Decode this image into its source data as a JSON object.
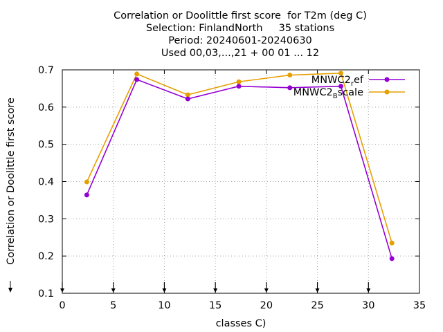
{
  "chart_data": {
    "type": "line",
    "title_lines": [
      "Correlation or Doolittle first score  for T2m (deg C)",
      "Selection: FinlandNorth     35 stations",
      "Period: 20240601-20240630",
      "Used 00,03,...,21 + 00 01 ... 12"
    ],
    "xlabel": "classes C)",
    "ylabel": "Correlation or Doolittle first score",
    "xlim": [
      0,
      35
    ],
    "ylim": [
      0.1,
      0.7
    ],
    "xticks": [
      "0",
      "5",
      "10",
      "15",
      "20",
      "25",
      "30",
      "35"
    ],
    "yticks": [
      "0.1",
      "0.2",
      "0.3",
      "0.4",
      "0.5",
      "0.6",
      "0.7"
    ],
    "grid": true,
    "legend_position": "top-right",
    "x": [
      2.4,
      7.3,
      12.3,
      17.3,
      22.3,
      27.3,
      32.3
    ],
    "series": [
      {
        "name": "MNWC2_ref",
        "label_main": "MNWC2",
        "label_sub": "r",
        "label_rest": "ef",
        "color": "#9400d3",
        "values": [
          0.364,
          0.674,
          0.622,
          0.656,
          0.652,
          0.656,
          0.193
        ]
      },
      {
        "name": "MNWC2_Bscale",
        "label_main": "MNWC2",
        "label_sub": "B",
        "label_rest": "scale",
        "color": "#e69f00",
        "values": [
          0.399,
          0.689,
          0.633,
          0.668,
          0.686,
          0.691,
          0.235
        ]
      }
    ],
    "bottom_markers_x": [
      0,
      5,
      10,
      15,
      20,
      25,
      30
    ]
  }
}
